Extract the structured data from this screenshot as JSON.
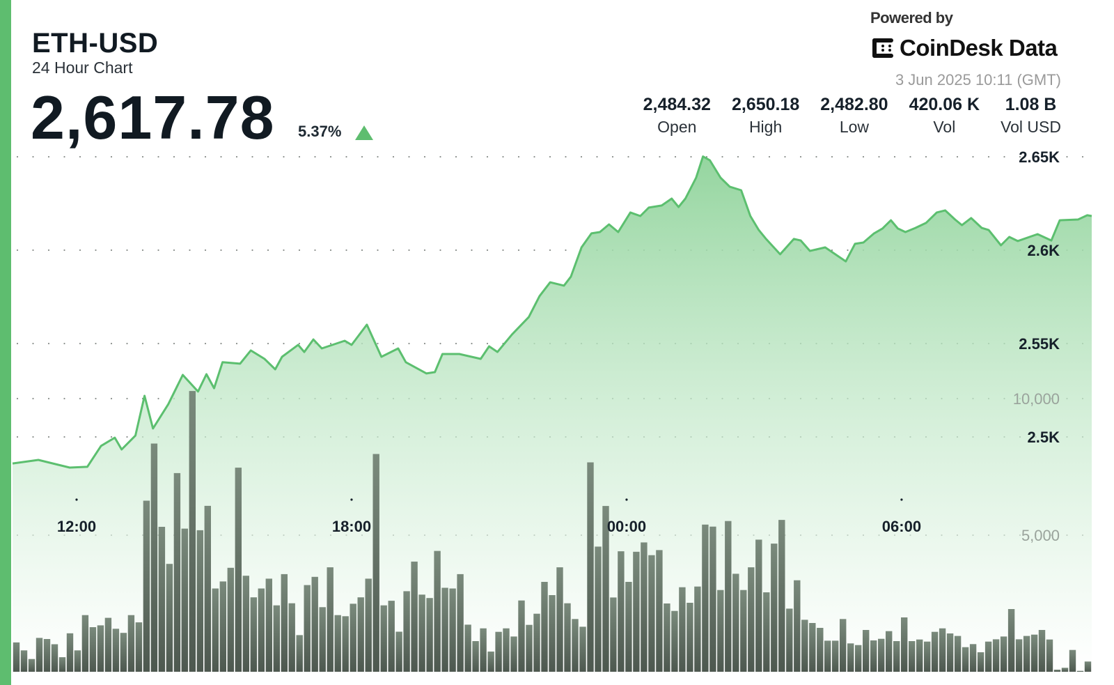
{
  "header": {
    "symbol": "ETH-USD",
    "subtitle": "24 Hour Chart",
    "price": "2,617.78",
    "change_pct": "5.37%",
    "change_direction": "up",
    "powered_by": "Powered by",
    "brand": "CoinDesk Data",
    "timestamp": "3 Jun 2025 10:11 (GMT)"
  },
  "stats": [
    {
      "value": "2,484.32",
      "label": "Open"
    },
    {
      "value": "2,650.18",
      "label": "High"
    },
    {
      "value": "2,482.80",
      "label": "Low"
    },
    {
      "value": "420.06 K",
      "label": "Vol"
    },
    {
      "value": "1.08 B",
      "label": "Vol USD"
    }
  ],
  "colors": {
    "accent": "#5ebd6f",
    "line": "#5cbf6f",
    "volume_bar": "#66766a",
    "text": "#111a22"
  },
  "chart_data": {
    "type": "area",
    "grid": "dotted horizontal",
    "x_ticks": [
      "12:00",
      "18:00",
      "00:00",
      "06:00"
    ],
    "price_axis": {
      "ticks": [
        2500,
        2550,
        2600,
        2650
      ],
      "tick_labels": [
        "2.5K",
        "2.55K",
        "2.6K",
        "2.65K"
      ],
      "range": [
        2482.8,
        2650.18
      ]
    },
    "volume_axis": {
      "ticks": [
        5000,
        10000
      ],
      "tick_labels": [
        "5,000",
        "10,000"
      ]
    },
    "price_series": [
      [
        "10:36",
        2485.8
      ],
      [
        "11:10",
        2487.7
      ],
      [
        "11:51",
        2483.6
      ],
      [
        "12:14",
        2484.0
      ],
      [
        "12:32",
        2495.2
      ],
      [
        "12:50",
        2499.6
      ],
      [
        "12:59",
        2493.3
      ],
      [
        "13:17",
        2500.7
      ],
      [
        "13:29",
        2522.0
      ],
      [
        "13:40",
        2504.5
      ],
      [
        "14:00",
        2517.5
      ],
      [
        "14:19",
        2533.2
      ],
      [
        "14:39",
        2524.3
      ],
      [
        "14:50",
        2533.6
      ],
      [
        "15:00",
        2526.1
      ],
      [
        "15:11",
        2540.0
      ],
      [
        "15:34",
        2539.2
      ],
      [
        "15:48",
        2546.3
      ],
      [
        "16:06",
        2541.8
      ],
      [
        "16:20",
        2536.2
      ],
      [
        "16:29",
        2542.9
      ],
      [
        "16:50",
        2549.3
      ],
      [
        "16:58",
        2545.5
      ],
      [
        "17:10",
        2552.2
      ],
      [
        "17:21",
        2547.4
      ],
      [
        "17:51",
        2551.5
      ],
      [
        "18:00",
        2549.3
      ],
      [
        "18:20",
        2560.1
      ],
      [
        "18:39",
        2542.9
      ],
      [
        "19:01",
        2547.4
      ],
      [
        "19:11",
        2540.0
      ],
      [
        "19:38",
        2534.0
      ],
      [
        "19:49",
        2534.7
      ],
      [
        "19:59",
        2544.4
      ],
      [
        "20:21",
        2544.4
      ],
      [
        "20:49",
        2541.8
      ],
      [
        "21:00",
        2548.5
      ],
      [
        "21:11",
        2545.5
      ],
      [
        "21:30",
        2554.9
      ],
      [
        "21:52",
        2564.2
      ],
      [
        "22:06",
        2575.4
      ],
      [
        "22:20",
        2582.8
      ],
      [
        "22:38",
        2581.0
      ],
      [
        "22:47",
        2585.8
      ],
      [
        "23:01",
        2601.5
      ],
      [
        "23:14",
        2609.0
      ],
      [
        "23:25",
        2609.7
      ],
      [
        "23:37",
        2613.8
      ],
      [
        "23:49",
        2609.7
      ],
      [
        "00:05",
        2620.2
      ],
      [
        "00:18",
        2618.3
      ],
      [
        "00:29",
        2622.8
      ],
      [
        "00:46",
        2623.9
      ],
      [
        "00:59",
        2627.6
      ],
      [
        "01:08",
        2623.1
      ],
      [
        "01:17",
        2627.6
      ],
      [
        "01:31",
        2638.8
      ],
      [
        "01:40",
        2650.2
      ],
      [
        "01:49",
        2648.1
      ],
      [
        "02:03",
        2638.8
      ],
      [
        "02:15",
        2634.0
      ],
      [
        "02:30",
        2632.1
      ],
      [
        "02:42",
        2618.3
      ],
      [
        "02:53",
        2610.8
      ],
      [
        "03:02",
        2606.3
      ],
      [
        "03:21",
        2597.8
      ],
      [
        "03:39",
        2606.0
      ],
      [
        "03:48",
        2605.2
      ],
      [
        "04:00",
        2599.6
      ],
      [
        "04:20",
        2601.5
      ],
      [
        "04:47",
        2594.0
      ],
      [
        "04:59",
        2603.4
      ],
      [
        "05:10",
        2604.1
      ],
      [
        "05:24",
        2609.0
      ],
      [
        "05:35",
        2611.6
      ],
      [
        "05:46",
        2616.0
      ],
      [
        "05:55",
        2611.6
      ],
      [
        "06:05",
        2609.7
      ],
      [
        "06:18",
        2611.9
      ],
      [
        "06:32",
        2614.6
      ],
      [
        "06:46",
        2620.2
      ],
      [
        "06:57",
        2621.3
      ],
      [
        "07:10",
        2616.4
      ],
      [
        "07:19",
        2613.4
      ],
      [
        "07:31",
        2617.2
      ],
      [
        "07:45",
        2611.9
      ],
      [
        "07:54",
        2610.8
      ],
      [
        "08:10",
        2602.6
      ],
      [
        "08:21",
        2607.1
      ],
      [
        "08:32",
        2604.9
      ],
      [
        "08:58",
        2608.6
      ],
      [
        "09:16",
        2605.2
      ],
      [
        "09:27",
        2616.0
      ],
      [
        "09:51",
        2616.4
      ],
      [
        "10:03",
        2618.7
      ],
      [
        "10:09",
        2618.3
      ]
    ],
    "volume_series": [
      1075,
      783,
      466,
      1241,
      1200,
      1008,
      533,
      1408,
      783,
      2074,
      1633,
      1699,
      1974,
      1574,
      1424,
      2074,
      1808,
      6264,
      8355,
      5306,
      3948,
      7272,
      5240,
      10279,
      5181,
      6073,
      3049,
      3307,
      3807,
      7472,
      3515,
      2724,
      3049,
      3407,
      2432,
      3574,
      2507,
      1341,
      3174,
      3474,
      2366,
      3823,
      2074,
      2033,
      2491,
      2724,
      3407,
      7972,
      2432,
      2599,
      1466,
      2949,
      4032,
      2824,
      2699,
      4423,
      3074,
      3049,
      3574,
      1724,
      1122,
      1590,
      740,
      1462,
      1590,
      1292,
      2610,
      1717,
      2125,
      3290,
      2805,
      3825,
      2508,
      1930,
      1649,
      7667,
      4581,
      6069,
      2720,
      4411,
      3290,
      4394,
      4734,
      4267,
      4454,
      2499,
      2227,
      3094,
      2525,
      3120,
      5389,
      5313,
      2992,
      5517,
      3587,
      2992,
      3825,
      4836,
      2907,
      4692,
      5559,
      2312,
      3349,
      1904,
      1785,
      1607,
      1139,
      1139,
      1930,
      1037,
      978,
      1530,
      1148,
      1207,
      1488,
      1122,
      1989,
      1122,
      1182,
      1105,
      1462,
      1590,
      1403,
      1310,
      901,
      1012,
      714,
      1105,
      1190,
      1292,
      2295,
      1190,
      1310,
      1360,
      1530,
      1182,
      77,
      145,
      799,
      34,
      374
    ]
  }
}
